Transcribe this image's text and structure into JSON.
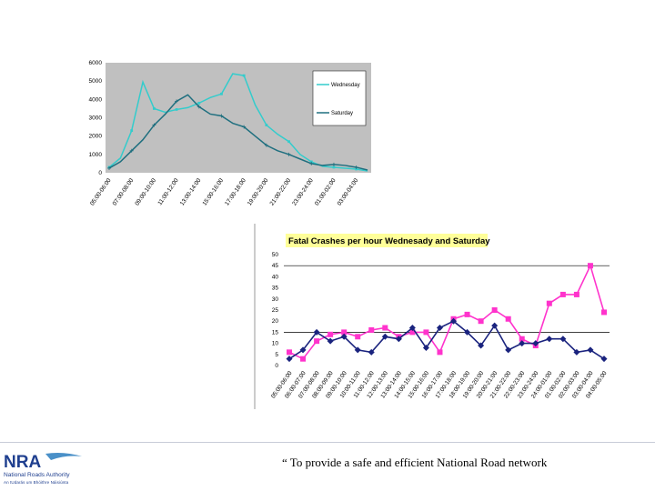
{
  "chart_data": [
    {
      "type": "line",
      "title": "",
      "xlabel": "",
      "ylabel": "",
      "ylim": [
        0,
        6000
      ],
      "y_ticks": [
        "6000",
        "5000",
        "4000",
        "3000",
        "2000",
        "1000",
        "0"
      ],
      "grid": false,
      "legend_position": "right",
      "categories": [
        "05:00-06:00",
        "07:00-08:00",
        "09:00-10:00",
        "11:00-12:00",
        "13:00-14:00",
        "15:00-16:00",
        "17:00-18:00",
        "19:00-20:00",
        "21:00-22:00",
        "23:00-24:00",
        "01:00-02:00",
        "03:00-04:00"
      ],
      "x": [
        0,
        1,
        2,
        3,
        4,
        5,
        6,
        7,
        8,
        9,
        10,
        11,
        12,
        13,
        14,
        15,
        16,
        17,
        18,
        19,
        20,
        21,
        22,
        23
      ],
      "series": [
        {
          "name": "Wednesday",
          "color": "#33cccc",
          "values": [
            300,
            800,
            2300,
            4950,
            3500,
            3300,
            3450,
            3550,
            3800,
            4100,
            4300,
            5400,
            5300,
            3700,
            2600,
            2100,
            1700,
            1000,
            600,
            350,
            300,
            250,
            200,
            100
          ]
        },
        {
          "name": "Saturday",
          "color": "#1f6f7f",
          "values": [
            250,
            600,
            1200,
            1800,
            2600,
            3200,
            3900,
            4250,
            3600,
            3200,
            3100,
            2700,
            2500,
            2000,
            1500,
            1200,
            1000,
            750,
            500,
            400,
            450,
            400,
            300,
            150
          ]
        }
      ]
    },
    {
      "type": "line",
      "title": "Fatal Crashes per hour Wednesady and Saturday",
      "xlabel": "",
      "ylabel": "",
      "ylim": [
        0,
        50
      ],
      "y_ticks": [
        "50",
        "45",
        "40",
        "35",
        "30",
        "25",
        "20",
        "15",
        "10",
        "5",
        "0"
      ],
      "grid": true,
      "categories": [
        "05:00-06:00",
        "06:00-07:00",
        "07:00-08:00",
        "08:00-09:00",
        "09:00-10:00",
        "10:00-11:00",
        "11:00-12:00",
        "12:00-13:00",
        "13:00-14:00",
        "14:00-15:00",
        "15:00-16:00",
        "16:00-17:00",
        "17:00-18:00",
        "18:00-19:00",
        "19:00-20:00",
        "20:00-21:00",
        "21:00-22:00",
        "22:00-23:00",
        "23:00-24:00",
        "24:00-01:00",
        "01:00-02:00",
        "02:00-03:00",
        "03:00-04:00",
        "04:00-05:00"
      ],
      "series": [
        {
          "color": "#ff33cc",
          "marker": "square",
          "values": [
            6,
            3,
            11,
            14,
            15,
            13,
            16,
            17,
            13,
            15,
            15,
            6,
            21,
            23,
            20,
            25,
            21,
            12,
            9,
            28,
            32,
            32,
            45,
            24
          ]
        },
        {
          "color": "#1a237e",
          "marker": "diamond",
          "values": [
            3,
            7,
            15,
            11,
            13,
            7,
            6,
            13,
            12,
            17,
            8,
            17,
            20,
            15,
            9,
            18,
            7,
            10,
            10,
            12,
            12,
            6,
            7,
            3
          ]
        }
      ]
    }
  ],
  "footer": {
    "logo_letters": "NRA",
    "logo_name": "National Roads Authority",
    "logo_tagline": "An tUdarás um Bhóithre Náisiúnta",
    "slogan": "“ To provide a safe and efficient National Road network"
  }
}
